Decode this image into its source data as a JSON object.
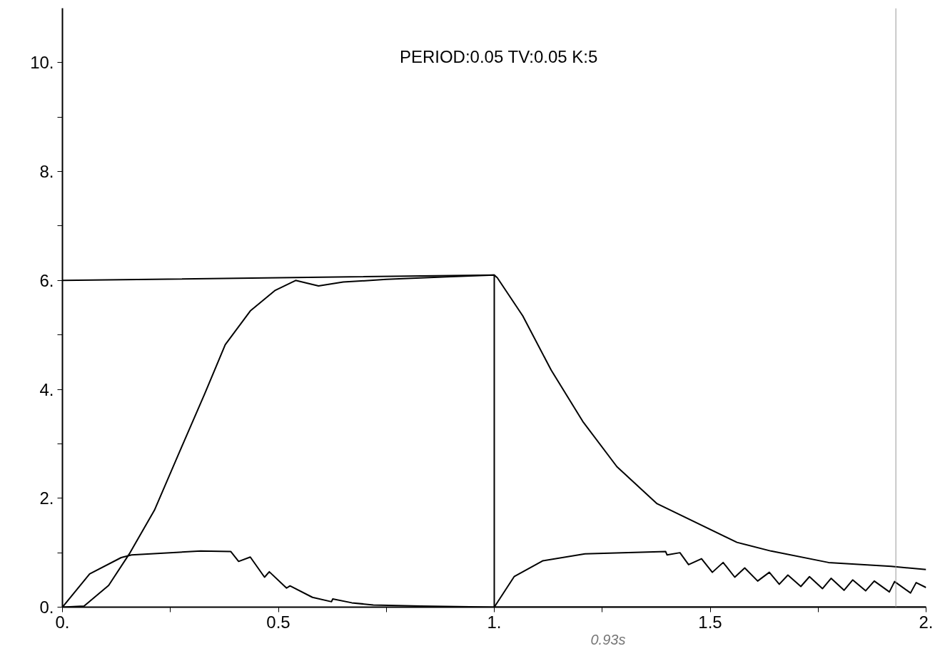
{
  "chart_data": {
    "type": "line",
    "title": "PERIOD:0.05  TV:0.05  K:5",
    "xlim": [
      0,
      2
    ],
    "ylim": [
      0,
      11
    ],
    "xticks": [
      {
        "value": 0,
        "label": "0."
      },
      {
        "value": 0.25,
        "label": null
      },
      0.5,
      {
        "value": 0.75,
        "label": null
      },
      {
        "value": 1,
        "label": "1."
      },
      {
        "value": 1.25,
        "label": null
      },
      1.5,
      {
        "value": 1.75,
        "label": null
      },
      {
        "value": 2,
        "label": "2."
      }
    ],
    "yticks": [
      {
        "value": 0,
        "label": "0."
      },
      {
        "value": 1,
        "label": null
      },
      {
        "value": 2,
        "label": "2."
      },
      {
        "value": 3,
        "label": null
      },
      {
        "value": 4,
        "label": "4."
      },
      {
        "value": 5,
        "label": null
      },
      {
        "value": 6,
        "label": "6."
      },
      {
        "value": 7,
        "label": null
      },
      {
        "value": 8,
        "label": "8."
      },
      {
        "value": 9,
        "label": null
      },
      {
        "value": 10,
        "label": "10."
      }
    ],
    "grid": false,
    "marker": "none",
    "line_style": "solid",
    "series": [
      {
        "color": "#000000",
        "x": [
          0,
          1,
          1,
          2
        ],
        "values": [
          6.0,
          6.1,
          0,
          0
        ]
      },
      {
        "color": "#000000",
        "x": [
          0,
          0.05,
          0.107,
          0.155,
          0.213,
          0.271,
          0.329,
          0.377,
          0.435,
          0.493,
          0.54,
          0.593,
          0.65,
          0.75,
          0.9,
          1.0,
          1.007,
          1.066,
          1.132,
          1.205,
          1.284,
          1.377,
          1.562,
          1.641,
          1.774,
          1.919,
          2.0
        ],
        "values": [
          0,
          0.02,
          0.4,
          0.98,
          1.78,
          2.85,
          3.91,
          4.82,
          5.44,
          5.82,
          6.0,
          5.9,
          5.97,
          6.02,
          6.07,
          6.1,
          6.05,
          5.35,
          4.35,
          3.41,
          2.58,
          1.9,
          1.19,
          1.03,
          0.82,
          0.75,
          0.69
        ]
      },
      {
        "color": "#000000",
        "x": [
          0,
          0.063,
          0.136,
          0.16,
          0.32,
          0.39,
          0.408,
          0.435,
          0.468,
          0.479,
          0.519,
          0.527,
          0.579,
          0.623,
          0.626,
          0.67,
          0.72,
          0.83,
          1.0,
          1.046,
          1.112,
          1.21,
          1.397,
          1.4,
          1.43,
          1.45,
          1.48,
          1.505,
          1.53,
          1.557,
          1.58,
          1.61,
          1.637,
          1.66,
          1.68,
          1.71,
          1.73,
          1.76,
          1.78,
          1.81,
          1.83,
          1.86,
          1.88,
          1.915,
          1.927,
          1.964,
          1.977,
          2.0
        ],
        "values": [
          0,
          0.61,
          0.91,
          0.96,
          1.03,
          1.02,
          0.84,
          0.92,
          0.55,
          0.65,
          0.35,
          0.39,
          0.18,
          0.1,
          0.15,
          0.08,
          0.04,
          0.02,
          0,
          0.56,
          0.85,
          0.98,
          1.02,
          0.96,
          1.0,
          0.78,
          0.89,
          0.64,
          0.82,
          0.55,
          0.72,
          0.48,
          0.64,
          0.42,
          0.59,
          0.38,
          0.56,
          0.34,
          0.53,
          0.31,
          0.5,
          0.3,
          0.48,
          0.28,
          0.47,
          0.26,
          0.45,
          0.36
        ]
      }
    ],
    "ref_lines": [
      {
        "axis": "x",
        "value": 1.93,
        "color": "#999999"
      }
    ],
    "annotations": [
      "0.93s"
    ]
  }
}
